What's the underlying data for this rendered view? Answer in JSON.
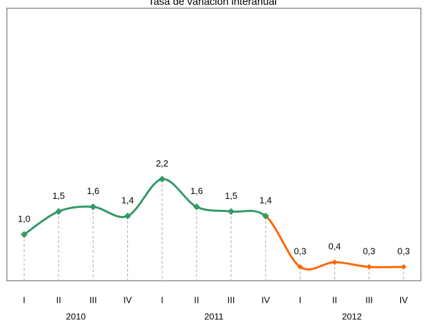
{
  "chart_data": {
    "type": "line",
    "title": "Tasa de variación interanual",
    "categories": [
      "I",
      "II",
      "III",
      "IV",
      "I",
      "II",
      "III",
      "IV",
      "I",
      "II",
      "III",
      "IV"
    ],
    "x_groups": [
      "2010",
      "2011",
      "2012"
    ],
    "values": [
      1.0,
      1.5,
      1.6,
      1.4,
      2.2,
      1.6,
      1.5,
      1.4,
      0.3,
      0.4,
      0.3,
      0.3
    ],
    "value_labels": [
      "1,0",
      "1,5",
      "1,6",
      "1,4",
      "2,2",
      "1,6",
      "1,5",
      "1,4",
      "0,3",
      "0,4",
      "0,3",
      "0,3"
    ],
    "colors": [
      "#339966",
      "#339966",
      "#339966",
      "#339966",
      "#339966",
      "#339966",
      "#339966",
      "#339966",
      "#ff6600",
      "#ff6600",
      "#ff6600",
      "#ff6600"
    ],
    "ylim": [
      0,
      5.9
    ],
    "smooth": true
  }
}
